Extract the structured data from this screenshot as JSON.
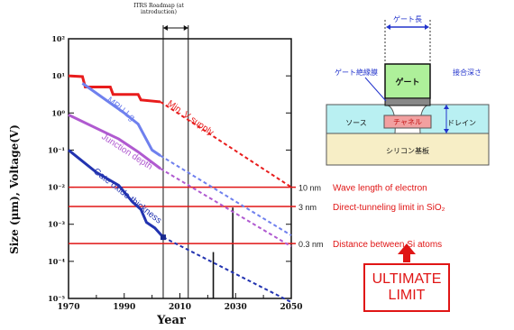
{
  "title_fragment": "",
  "roadmap_label": "ITRS Roadmap (at introduction)",
  "ultimate_limit": [
    "ULTIMATE",
    "LIMIT"
  ],
  "transistor_labels": {
    "gate_length": "ゲート長",
    "gate_insulator": "ゲート絶縁膜",
    "junction_depth": "接合深さ",
    "gate": "ゲート",
    "source": "ソース",
    "channel": "チャネル",
    "drain": "ドレイン",
    "substrate": "シリコン基板"
  },
  "colors": {
    "supply": "#e81c1c",
    "mpu": "#6f80ee",
    "junction": "#b05ad0",
    "gate_oxide": "#2233b0",
    "limit": "#e01515"
  },
  "chart_data": {
    "type": "line",
    "xlabel": "Year",
    "ylabel": "Size (μm), Voltage(V)",
    "xlim": [
      1970,
      2050
    ],
    "ylim_log10": [
      -5,
      2
    ],
    "x_ticks": [
      "1970",
      "1990",
      "2010",
      "2030",
      "2050"
    ],
    "y_ticks": [
      {
        "exp": 2,
        "label": "10²"
      },
      {
        "exp": 1,
        "label": "10¹"
      },
      {
        "exp": 0,
        "label": "10⁰"
      },
      {
        "exp": -1,
        "label": "10⁻¹"
      },
      {
        "exp": -2,
        "label": "10⁻²"
      },
      {
        "exp": -3,
        "label": "10⁻³"
      },
      {
        "exp": -4,
        "label": "10⁻⁴"
      },
      {
        "exp": -5,
        "label": "10⁻⁵"
      }
    ],
    "roadmap_years": [
      2004,
      2013
    ],
    "series": [
      {
        "name": "Min. V supply",
        "color": "#e81c1c",
        "actual": [
          [
            1970,
            1.0
          ],
          [
            1975,
            0.98
          ],
          [
            1976,
            0.7
          ],
          [
            1985,
            0.7
          ],
          [
            1986,
            0.5
          ],
          [
            1995,
            0.5
          ],
          [
            1996,
            0.35
          ],
          [
            2003,
            0.3
          ]
        ],
        "projected": [
          [
            2003,
            0.3
          ],
          [
            2050,
            -2.0
          ]
        ]
      },
      {
        "name": "MPU Lg",
        "color": "#6f80ee",
        "actual": [
          [
            1975,
            0.8
          ],
          [
            1990,
            0.0
          ],
          [
            1995,
            -0.3
          ],
          [
            2000,
            -1.0
          ],
          [
            2003,
            -1.15
          ]
        ],
        "projected": [
          [
            2003,
            -1.15
          ],
          [
            2050,
            -3.3
          ]
        ]
      },
      {
        "name": "Junction depth",
        "color": "#b05ad0",
        "actual": [
          [
            1970,
            -0.05
          ],
          [
            1988,
            -0.7
          ],
          [
            1995,
            -1.05
          ],
          [
            2003,
            -1.5
          ]
        ],
        "projected": [
          [
            2003,
            -1.5
          ],
          [
            2050,
            -3.6
          ]
        ]
      },
      {
        "name": "Gate oxide thickness",
        "color": "#2233b0",
        "actual": [
          [
            1970,
            -1.0
          ],
          [
            1980,
            -1.6
          ],
          [
            1988,
            -1.95
          ],
          [
            1993,
            -2.4
          ],
          [
            1996,
            -2.6
          ],
          [
            1998,
            -2.95
          ],
          [
            2001,
            -3.1
          ],
          [
            2004,
            -3.35
          ]
        ],
        "projected": [
          [
            2004,
            -3.35
          ],
          [
            2050,
            -5.1
          ]
        ]
      }
    ],
    "limits": [
      {
        "value_label": "10 nm",
        "text": "Wave length of electron",
        "log10": -2
      },
      {
        "value_label": "3 nm",
        "text": "Direct-tunneling limit in SiO₂",
        "log10": -2.52
      },
      {
        "value_label": "0.3 nm",
        "text": "Distance between Si atoms",
        "log10": -3.52
      }
    ],
    "vertical_bars": [
      {
        "year": 2022,
        "from": -5,
        "to": -3.75
      },
      {
        "year": 2029,
        "from": -5,
        "to": -2.55
      }
    ]
  }
}
